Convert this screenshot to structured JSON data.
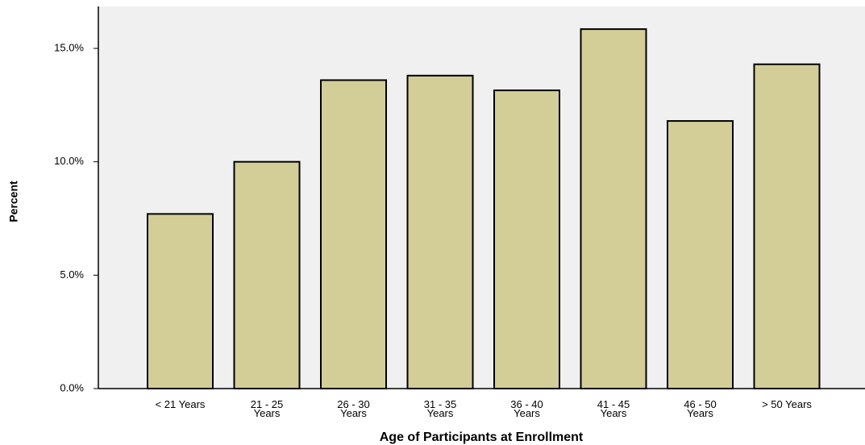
{
  "chart_data": {
    "type": "bar",
    "xlabel": "Age of Participants at Enrollment",
    "ylabel": "Percent",
    "categories": [
      "< 21 Years",
      "21 - 25 Years",
      "26 - 30 Years",
      "31 - 35 Years",
      "36 - 40 Years",
      "41 - 45 Years",
      "46 - 50 Years",
      "> 50 Years"
    ],
    "values": [
      7.7,
      10.0,
      13.6,
      13.8,
      13.15,
      15.85,
      11.8,
      14.3
    ],
    "color": "#d3ce97",
    "ylim": [
      0,
      16.85
    ],
    "yticks": [
      {
        "value": 0,
        "label": "0.0%"
      },
      {
        "value": 5,
        "label": "5.0%"
      },
      {
        "value": 10,
        "label": "10.0%"
      },
      {
        "value": 15,
        "label": "15.0%"
      }
    ]
  }
}
